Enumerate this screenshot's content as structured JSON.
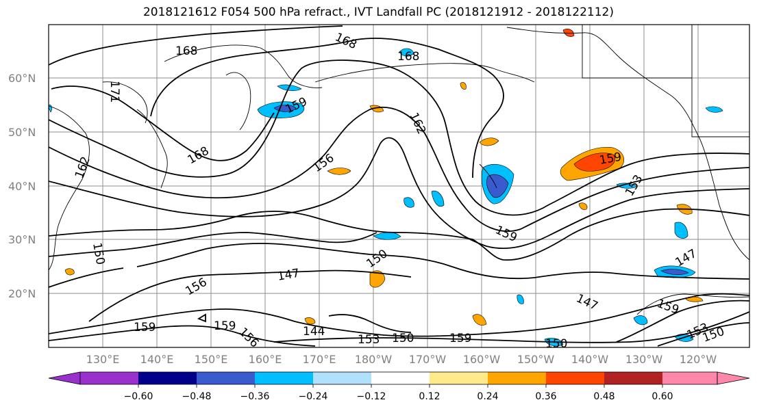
{
  "title": "2018121612 F054 500 hPa refract., IVT Landfall PC (2018121912 - 2018122112)",
  "map": {
    "lat_labels": [
      "60°N",
      "50°N",
      "40°N",
      "30°N",
      "20°N"
    ],
    "lon_labels": [
      "130°E",
      "140°E",
      "150°E",
      "160°E",
      "170°E",
      "180°W",
      "170°W",
      "160°W",
      "150°W",
      "140°W",
      "130°W",
      "120°W"
    ],
    "contour_labels": [
      "168",
      "168",
      "168",
      "171",
      "168",
      "159",
      "162",
      "156",
      "153",
      "159",
      "159",
      "150",
      "147",
      "147",
      "147",
      "156",
      "159",
      "159",
      "156",
      "144",
      "153",
      "150",
      "159",
      "150",
      "159",
      "153",
      "150",
      "162",
      "150"
    ],
    "colors": {
      "contour": "#000000",
      "grid": "#8c8c8c",
      "coast": "#000000"
    }
  },
  "colorbar": {
    "ticks": [
      "−0.60",
      "−0.48",
      "−0.36",
      "−0.24",
      "−0.12",
      "0.12",
      "0.24",
      "0.36",
      "0.48",
      "0.60"
    ],
    "colors": [
      "#9932cc",
      "#00008b",
      "#3a5bcd",
      "#00bfff",
      "#b0e0fc",
      "#ffffff",
      "#ffe98a",
      "#ffa500",
      "#ff4500",
      "#b22222",
      "#ff88aa"
    ]
  }
}
